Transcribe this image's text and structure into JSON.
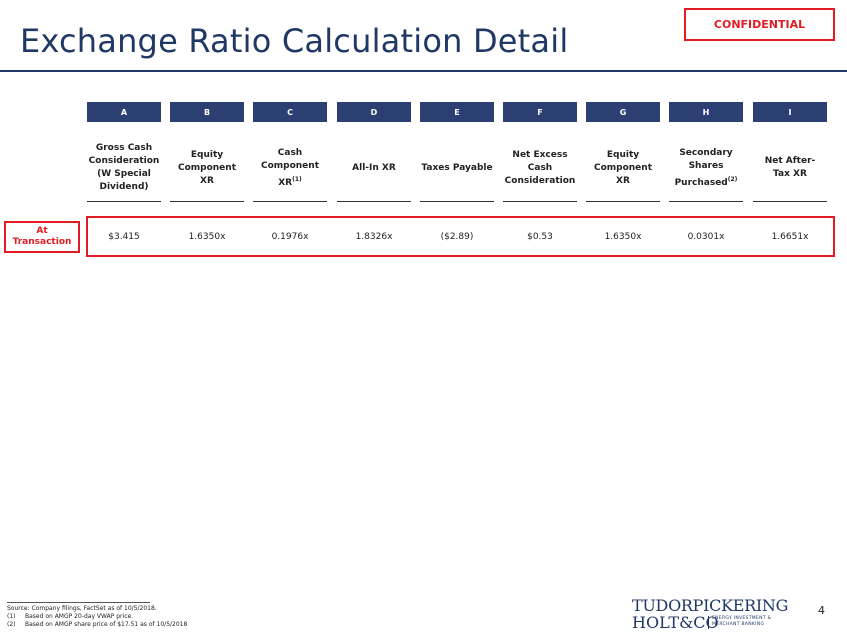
{
  "header": {
    "title": "Exchange Ratio Calculation Detail",
    "badge": "CONFIDENTIAL"
  },
  "table": {
    "columns": [
      {
        "letter": "A",
        "lines": [
          "Gross Cash",
          "Consideration",
          "(W Special",
          "Dividend)"
        ],
        "sup": ""
      },
      {
        "letter": "B",
        "lines": [
          "Equity",
          "Component",
          "XR"
        ],
        "sup": ""
      },
      {
        "letter": "C",
        "lines": [
          "Cash",
          "Component",
          "XR"
        ],
        "sup": "(1)"
      },
      {
        "letter": "D",
        "lines": [
          "All-In XR"
        ],
        "sup": ""
      },
      {
        "letter": "E",
        "lines": [
          "Taxes Payable"
        ],
        "sup": ""
      },
      {
        "letter": "F",
        "lines": [
          "Net Excess",
          "Cash",
          "Consideration"
        ],
        "sup": ""
      },
      {
        "letter": "G",
        "lines": [
          "Equity",
          "Component",
          "XR"
        ],
        "sup": ""
      },
      {
        "letter": "H",
        "lines": [
          "Secondary",
          "Shares",
          "Purchased"
        ],
        "sup": "(2)"
      },
      {
        "letter": "I",
        "lines": [
          "Net After-",
          "Tax XR"
        ],
        "sup": ""
      }
    ],
    "row": {
      "label_lines": [
        "At",
        "Transaction"
      ],
      "values": [
        "$3.415",
        "1.6350x",
        "0.1976x",
        "1.8326x",
        "($2.89)",
        "$0.53",
        "1.6350x",
        "0.0301x",
        "1.6651x"
      ]
    }
  },
  "footer": {
    "source": "Source: Company filings, FactSet as of 10/5/2018.",
    "notes": [
      {
        "num": "(1)",
        "text": "Based on AMGP 20-day VWAP price."
      },
      {
        "num": "(2)",
        "text": "Based on AMGP share price of $17.51 as of 10/5/2018"
      }
    ],
    "page_number": "4"
  },
  "logo": {
    "line1": "TUDORPICKERING",
    "line2": "HOLT&CO",
    "tagline": [
      "ENERGY INVESTMENT &",
      "MERCHANT BANKING"
    ]
  },
  "colors": {
    "navy": "#1f3864",
    "header_fill": "#2b3f72",
    "highlight_red": "#e31b23"
  }
}
